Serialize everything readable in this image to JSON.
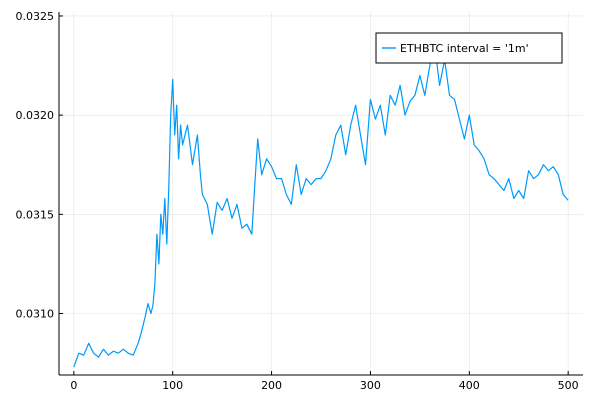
{
  "chart_data": {
    "type": "line",
    "title": "",
    "xlabel": "",
    "ylabel": "",
    "xlim": [
      -15,
      515
    ],
    "ylim": [
      0.30685,
      0.03252
    ],
    "x_ticks": [
      0,
      100,
      200,
      300,
      400,
      500
    ],
    "x_tick_labels": [
      "0",
      "100",
      "200",
      "300",
      "400",
      "500"
    ],
    "y_ticks": [
      0.031,
      0.0315,
      0.032,
      0.0325
    ],
    "y_tick_labels": [
      "0.0310",
      "0.0315",
      "0.0320",
      "0.0325"
    ],
    "grid": true,
    "legend_position": "top-right",
    "series": [
      {
        "name": "ETHBTC interval = '1m'",
        "color": "#009AF9",
        "x": [
          0,
          5,
          10,
          15,
          20,
          25,
          30,
          35,
          40,
          45,
          50,
          55,
          60,
          65,
          68,
          72,
          75,
          78,
          80,
          82,
          84,
          86,
          88,
          90,
          92,
          94,
          96,
          98,
          100,
          102,
          104,
          106,
          108,
          110,
          115,
          120,
          125,
          128,
          130,
          135,
          140,
          145,
          150,
          155,
          160,
          165,
          170,
          175,
          180,
          183,
          186,
          190,
          195,
          200,
          205,
          210,
          215,
          220,
          225,
          230,
          235,
          240,
          245,
          250,
          255,
          260,
          265,
          270,
          275,
          280,
          285,
          290,
          295,
          300,
          305,
          310,
          315,
          320,
          325,
          330,
          335,
          340,
          345,
          350,
          355,
          360,
          365,
          370,
          375,
          380,
          385,
          390,
          395,
          400,
          405,
          410,
          415,
          420,
          425,
          430,
          435,
          440,
          445,
          450,
          455,
          460,
          465,
          470,
          475,
          480,
          485,
          490,
          495,
          500
        ],
        "y": [
          0.03073,
          0.0308,
          0.03079,
          0.03085,
          0.0308,
          0.03078,
          0.03082,
          0.03079,
          0.03081,
          0.0308,
          0.03082,
          0.0308,
          0.03079,
          0.03085,
          0.0309,
          0.03098,
          0.03105,
          0.031,
          0.03104,
          0.03115,
          0.0314,
          0.03125,
          0.0315,
          0.0314,
          0.03158,
          0.03135,
          0.03162,
          0.032,
          0.03218,
          0.0319,
          0.03205,
          0.03178,
          0.03195,
          0.03185,
          0.03195,
          0.03175,
          0.0319,
          0.0317,
          0.0316,
          0.03155,
          0.0314,
          0.03156,
          0.03152,
          0.03158,
          0.03148,
          0.03155,
          0.03143,
          0.03145,
          0.0314,
          0.03165,
          0.03188,
          0.0317,
          0.03178,
          0.03174,
          0.03168,
          0.03168,
          0.0316,
          0.03155,
          0.03175,
          0.0316,
          0.03168,
          0.03165,
          0.03168,
          0.03168,
          0.03172,
          0.03178,
          0.0319,
          0.03195,
          0.0318,
          0.03195,
          0.03205,
          0.0319,
          0.03175,
          0.03208,
          0.03198,
          0.03205,
          0.0319,
          0.0321,
          0.03205,
          0.03215,
          0.032,
          0.03207,
          0.0321,
          0.0322,
          0.0321,
          0.03225,
          0.03235,
          0.03215,
          0.03228,
          0.0321,
          0.03208,
          0.03198,
          0.03188,
          0.032,
          0.03185,
          0.03182,
          0.03178,
          0.0317,
          0.03168,
          0.03165,
          0.03162,
          0.03168,
          0.03158,
          0.03162,
          0.03158,
          0.03172,
          0.03168,
          0.0317,
          0.03175,
          0.03172,
          0.03174,
          0.0317,
          0.0316,
          0.03157
        ]
      }
    ]
  }
}
